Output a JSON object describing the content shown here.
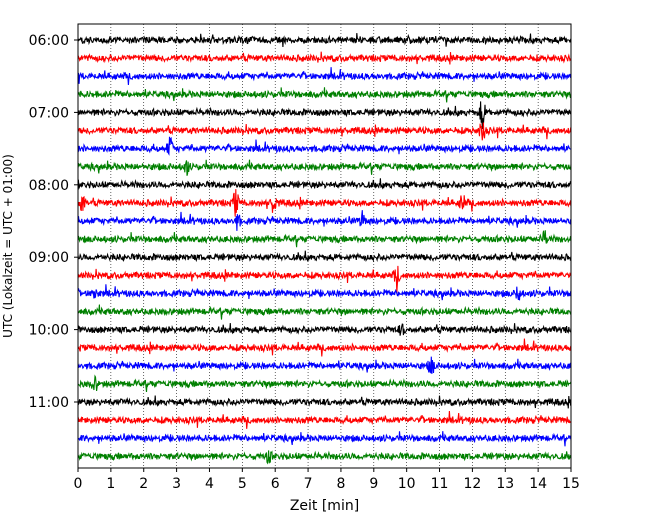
{
  "chart_data": {
    "type": "line",
    "title": "",
    "xlabel": "Zeit  [min]",
    "ylabel": "UTC (Lokalzeit = UTC + 01:00)",
    "xlim": [
      0,
      15
    ],
    "x_ticks": [
      "0",
      "1",
      "2",
      "3",
      "4",
      "5",
      "6",
      "7",
      "8",
      "9",
      "10",
      "11",
      "12",
      "13",
      "14",
      "15"
    ],
    "y_tick_labels": [
      "06:00",
      "07:00",
      "08:00",
      "09:00",
      "10:00",
      "11:00"
    ],
    "grid": "vertical dotted at each minute",
    "trace_colors": [
      "#000000",
      "#ff0000",
      "#0000ff",
      "#008000"
    ],
    "rows": [
      {
        "time": "06:00",
        "color": "#000000"
      },
      {
        "time": "06:15",
        "color": "#ff0000"
      },
      {
        "time": "06:30",
        "color": "#0000ff"
      },
      {
        "time": "06:45",
        "color": "#008000"
      },
      {
        "time": "07:00",
        "color": "#000000"
      },
      {
        "time": "07:15",
        "color": "#ff0000"
      },
      {
        "time": "07:30",
        "color": "#0000ff"
      },
      {
        "time": "07:45",
        "color": "#008000"
      },
      {
        "time": "08:00",
        "color": "#000000"
      },
      {
        "time": "08:15",
        "color": "#ff0000"
      },
      {
        "time": "08:30",
        "color": "#0000ff"
      },
      {
        "time": "08:45",
        "color": "#008000"
      },
      {
        "time": "09:00",
        "color": "#000000"
      },
      {
        "time": "09:15",
        "color": "#ff0000"
      },
      {
        "time": "09:30",
        "color": "#0000ff"
      },
      {
        "time": "09:45",
        "color": "#008000"
      },
      {
        "time": "10:00",
        "color": "#000000"
      },
      {
        "time": "10:15",
        "color": "#ff0000"
      },
      {
        "time": "10:30",
        "color": "#0000ff"
      },
      {
        "time": "10:45",
        "color": "#008000"
      },
      {
        "time": "11:00",
        "color": "#000000"
      },
      {
        "time": "11:15",
        "color": "#ff0000"
      },
      {
        "time": "11:30",
        "color": "#0000ff"
      },
      {
        "time": "11:45",
        "color": "#008000"
      }
    ],
    "events": [
      {
        "row": 4,
        "minute": 12.3,
        "amplitude": 1.0
      },
      {
        "row": 5,
        "minute": 12.3,
        "amplitude": 0.8
      },
      {
        "row": 6,
        "minute": 2.8,
        "amplitude": 0.7
      },
      {
        "row": 7,
        "minute": 3.3,
        "amplitude": 0.5
      },
      {
        "row": 9,
        "minute": 0.15,
        "amplitude": 0.6
      },
      {
        "row": 9,
        "minute": 4.8,
        "amplitude": 0.9
      },
      {
        "row": 9,
        "minute": 5.95,
        "amplitude": 0.7
      },
      {
        "row": 9,
        "minute": 11.7,
        "amplitude": 0.6
      },
      {
        "row": 10,
        "minute": 4.85,
        "amplitude": 0.5
      },
      {
        "row": 10,
        "minute": 8.65,
        "amplitude": 0.5
      },
      {
        "row": 11,
        "minute": 14.2,
        "amplitude": 0.5
      },
      {
        "row": 13,
        "minute": 9.7,
        "amplitude": 0.6
      },
      {
        "row": 14,
        "minute": 0.5,
        "amplitude": 0.4
      },
      {
        "row": 14,
        "minute": 13.4,
        "amplitude": 0.5
      },
      {
        "row": 16,
        "minute": 9.85,
        "amplitude": 0.3
      },
      {
        "row": 18,
        "minute": 10.75,
        "amplitude": 0.6
      },
      {
        "row": 19,
        "minute": 0.5,
        "amplitude": 0.5
      },
      {
        "row": 23,
        "minute": 5.8,
        "amplitude": 0.4
      }
    ]
  }
}
